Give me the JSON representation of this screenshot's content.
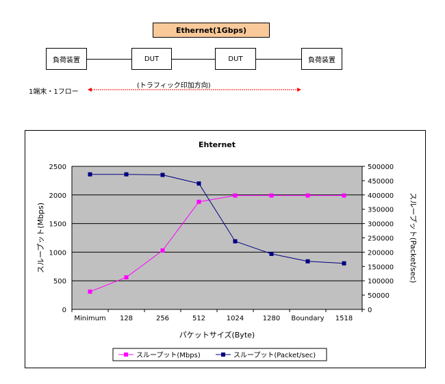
{
  "diagram": {
    "title": "Ethernet(1Gbps)",
    "left_device": "負荷装置",
    "dut1": "DUT",
    "dut2": "DUT",
    "right_device": "負荷装置",
    "flow_label": "1端末・1フロー",
    "traffic_label": "(トラフィック印加方向)",
    "colors": {
      "title_fill": "#f9c99a",
      "arrow": "#ff0000"
    }
  },
  "chart_data": {
    "type": "line",
    "title": "Ehternet",
    "xlabel": "パケットサイズ(Byte)",
    "ylabel": "スループット(Mbps)",
    "y2label": "スループット(Packet/sec)",
    "categories": [
      "Minimum",
      "128",
      "256",
      "512",
      "1024",
      "1280",
      "Boundary",
      "1518"
    ],
    "ylim": [
      0,
      2500
    ],
    "y2lim": [
      0,
      500000
    ],
    "yticks": [
      "0",
      "500",
      "1000",
      "1500",
      "2000",
      "2500"
    ],
    "y2ticks": [
      "0",
      "50000",
      "100000",
      "150000",
      "200000",
      "250000",
      "300000",
      "350000",
      "400000",
      "450000",
      "500000"
    ],
    "grid": true,
    "plot_background": "#c0c0c0",
    "legend_position": "bottom",
    "series": [
      {
        "name": "スループット(Mbps)",
        "axis": "left",
        "color": "#ff00ff",
        "values": [
          310,
          560,
          1030,
          1880,
          1990,
          1990,
          1990,
          1990
        ]
      },
      {
        "name": "スループット(Packet/sec)",
        "axis": "right",
        "color": "#000080",
        "values": [
          472000,
          472000,
          470000,
          440000,
          238000,
          194000,
          168000,
          161000
        ]
      }
    ]
  }
}
